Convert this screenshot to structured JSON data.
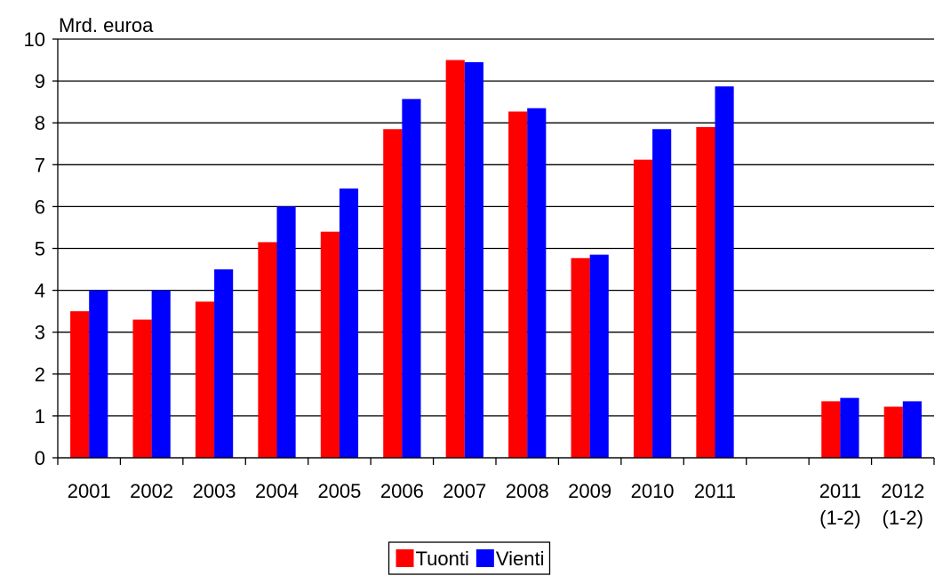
{
  "chart_data": {
    "type": "bar",
    "y_axis_label": "Mrd. euroa",
    "categories": [
      "2001",
      "2002",
      "2003",
      "2004",
      "2005",
      "2006",
      "2007",
      "2008",
      "2009",
      "2010",
      "2011",
      null,
      "2011\n(1-2)",
      "2012\n(1-2)"
    ],
    "series": [
      {
        "name": "Tuonti",
        "color": "#ff0000",
        "values": [
          3.5,
          3.3,
          3.73,
          5.15,
          5.4,
          7.85,
          9.5,
          8.27,
          4.77,
          7.12,
          7.9,
          null,
          1.35,
          1.22
        ]
      },
      {
        "name": "Vienti",
        "color": "#0000ff",
        "values": [
          4.0,
          4.0,
          4.5,
          6.0,
          6.43,
          8.57,
          9.45,
          8.35,
          4.85,
          7.85,
          8.87,
          null,
          1.43,
          1.35
        ]
      }
    ],
    "ylim": [
      0,
      10
    ],
    "yticks": [
      0,
      1,
      2,
      3,
      4,
      5,
      6,
      7,
      8,
      9,
      10
    ],
    "grid": true,
    "legend": "bottom"
  }
}
